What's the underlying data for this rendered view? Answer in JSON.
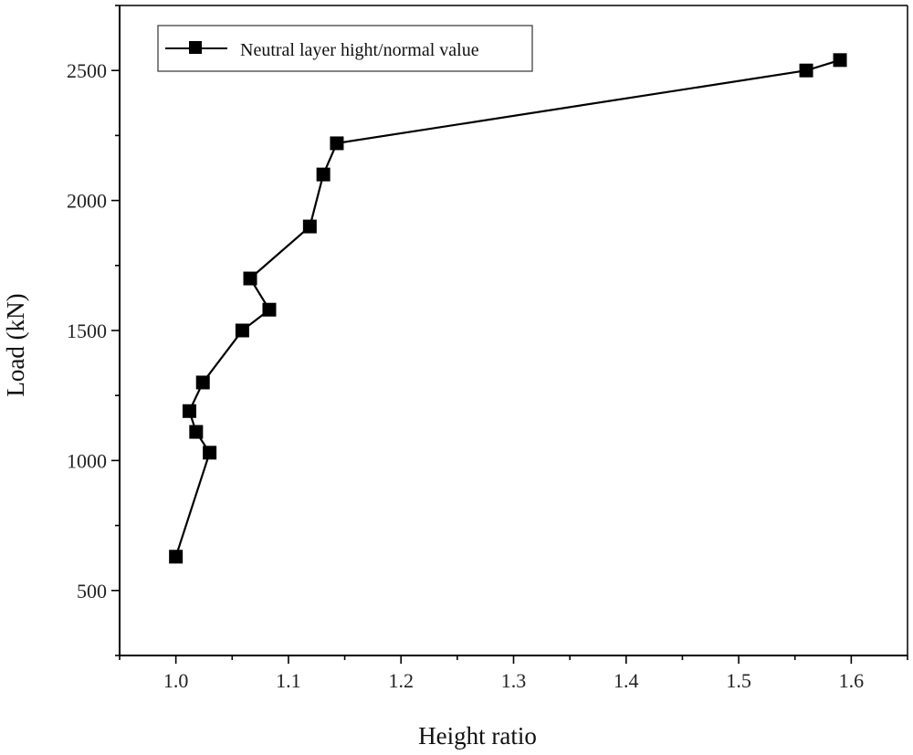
{
  "chart_data": {
    "type": "line",
    "title": "",
    "xlabel": "Height ratio",
    "ylabel": "Load (kN)",
    "xlim": [
      0.95,
      1.65
    ],
    "ylim": [
      250,
      2750
    ],
    "x_ticks": [
      1.0,
      1.1,
      1.2,
      1.3,
      1.4,
      1.5,
      1.6
    ],
    "x_tick_labels": [
      "1.0",
      "1.1",
      "1.2",
      "1.3",
      "1.4",
      "1.5",
      "1.6"
    ],
    "y_ticks": [
      500,
      1000,
      1500,
      2000,
      2500
    ],
    "y_tick_labels": [
      "500",
      "1000",
      "1500",
      "2000",
      "2500"
    ],
    "grid": false,
    "legend_position": "top-left",
    "series": [
      {
        "name": "Neutral layer hight/normal value",
        "marker": "square",
        "color": "#000000",
        "x": [
          1.0,
          1.03,
          1.018,
          1.012,
          1.024,
          1.059,
          1.083,
          1.066,
          1.119,
          1.131,
          1.143,
          1.56,
          1.59
        ],
        "y": [
          630,
          1030,
          1110,
          1190,
          1300,
          1500,
          1580,
          1700,
          1900,
          2100,
          2220,
          2500,
          2540
        ]
      }
    ]
  }
}
